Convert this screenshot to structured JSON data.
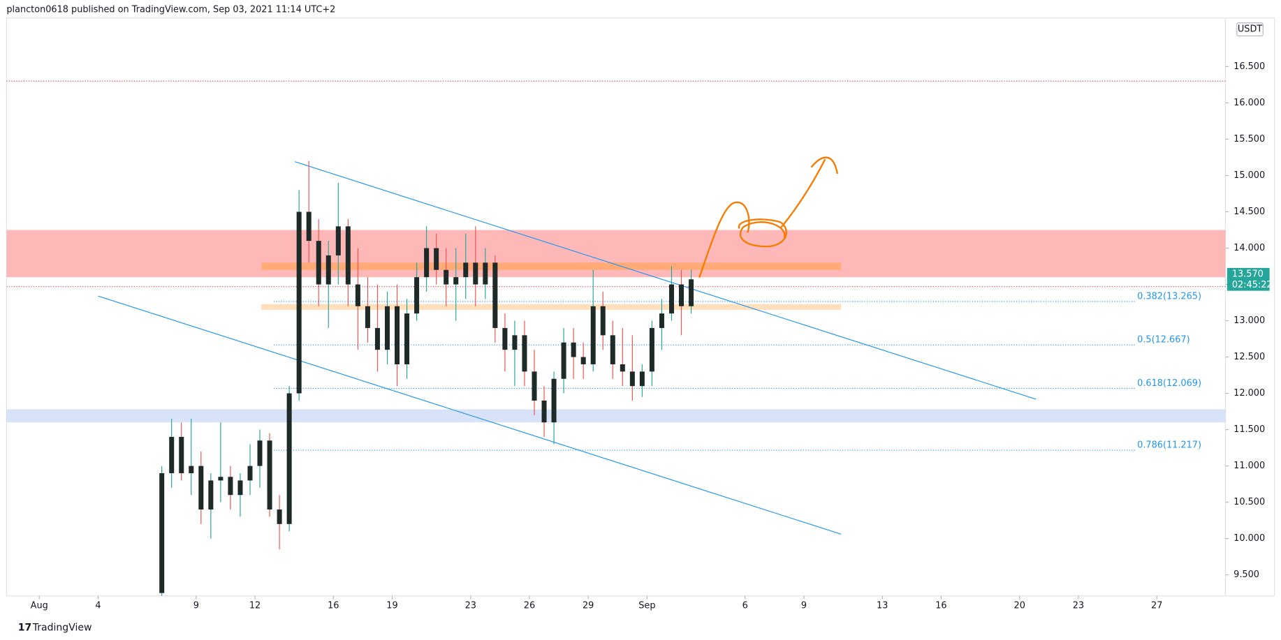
{
  "header": "plancton0618 published on TradingView.com, Sep 03, 2021 11:14 UTC+2",
  "footer": "TradingView",
  "chart_data": {
    "type": "candlestick",
    "currency": "USDT",
    "x": [
      7.0,
      7.5,
      8.0,
      8.5,
      9.0,
      9.5,
      10.0,
      10.5,
      11.0,
      11.5,
      12.0,
      12.5,
      13.0,
      13.5,
      14.0,
      14.5,
      15.0,
      15.5,
      16.0,
      16.5,
      17.0,
      17.5,
      18.0,
      18.5,
      19.0,
      19.5,
      20.0,
      20.5,
      21.0,
      21.5,
      22.0,
      22.5,
      23.0,
      23.5,
      24.0,
      24.5,
      25.0,
      25.5,
      26.0,
      26.5,
      27.0,
      27.5,
      28.0,
      28.5,
      29.0,
      29.5,
      30.0,
      30.5,
      31.0,
      31.5,
      32.0,
      32.5,
      33.0,
      33.5,
      34.0
    ],
    "open": [
      9.25,
      10.9,
      11.4,
      10.9,
      11.0,
      10.4,
      10.8,
      10.85,
      10.6,
      10.8,
      11.0,
      11.35,
      10.4,
      10.2,
      12.0,
      14.5,
      14.1,
      13.5,
      13.9,
      14.3,
      13.5,
      13.2,
      12.9,
      12.6,
      13.2,
      12.4,
      13.1,
      13.6,
      14.0,
      13.7,
      13.5,
      13.6,
      13.8,
      13.5,
      13.8,
      12.9,
      12.6,
      12.8,
      12.3,
      11.9,
      11.6,
      12.2,
      12.7,
      12.5,
      12.4,
      13.2,
      12.8,
      12.4,
      12.3,
      12.1,
      12.3,
      12.9,
      13.1,
      13.5,
      13.2
    ],
    "high": [
      11.0,
      11.65,
      11.6,
      11.65,
      11.2,
      10.9,
      11.6,
      11.0,
      10.9,
      11.3,
      11.5,
      11.45,
      10.6,
      12.1,
      14.8,
      15.2,
      14.4,
      14.1,
      14.9,
      14.4,
      14.0,
      13.6,
      13.5,
      13.4,
      13.5,
      13.3,
      13.8,
      14.3,
      14.2,
      14.0,
      14.0,
      14.2,
      14.3,
      14.0,
      13.9,
      13.1,
      13.0,
      13.0,
      12.6,
      12.1,
      12.3,
      12.9,
      12.9,
      12.7,
      13.7,
      13.4,
      13.0,
      12.9,
      12.8,
      12.4,
      13.0,
      13.3,
      13.75,
      13.7,
      13.7
    ],
    "low": [
      9.2,
      10.7,
      10.8,
      10.6,
      10.2,
      10.0,
      10.5,
      10.4,
      10.3,
      10.6,
      10.7,
      10.3,
      9.85,
      10.1,
      11.9,
      13.8,
      13.2,
      12.9,
      13.5,
      13.2,
      12.6,
      12.7,
      12.3,
      12.4,
      12.1,
      12.2,
      13.0,
      13.4,
      13.5,
      13.2,
      13.0,
      13.3,
      13.2,
      13.3,
      12.7,
      12.3,
      12.1,
      12.1,
      11.7,
      11.4,
      11.3,
      12.0,
      12.2,
      12.2,
      12.3,
      12.6,
      12.2,
      12.1,
      11.9,
      11.95,
      12.1,
      12.6,
      13.0,
      12.8,
      13.1
    ],
    "close": [
      10.9,
      11.4,
      10.9,
      11.0,
      10.4,
      10.8,
      10.85,
      10.6,
      10.8,
      11.0,
      11.35,
      10.4,
      10.2,
      12.0,
      14.5,
      14.1,
      13.5,
      13.9,
      14.3,
      13.5,
      13.2,
      12.9,
      12.6,
      13.2,
      12.4,
      13.1,
      13.6,
      14.0,
      13.7,
      13.5,
      13.6,
      13.8,
      13.5,
      13.8,
      12.9,
      12.6,
      12.8,
      12.3,
      11.9,
      11.6,
      12.2,
      12.7,
      12.5,
      12.4,
      13.2,
      12.8,
      12.4,
      12.3,
      12.1,
      12.3,
      12.9,
      13.1,
      13.5,
      13.2,
      13.57
    ],
    "up_color": "#26a69a",
    "down_color": "#ef5350",
    "body_color": "#1e2a28",
    "xlim": [
      -0.67,
      61.5
    ],
    "xticks": [
      {
        "value": 1,
        "label": "Aug"
      },
      4,
      9,
      12,
      16,
      19,
      23,
      26,
      29,
      {
        "value": 32,
        "label": "Sep"
      },
      {
        "value": 37,
        "label": "6"
      },
      {
        "value": 40,
        "label": "9"
      },
      {
        "value": 44,
        "label": "13"
      },
      {
        "value": 47,
        "label": "16"
      },
      {
        "value": 51,
        "label": "20"
      },
      {
        "value": 54,
        "label": "23"
      },
      {
        "value": 58,
        "label": "27"
      }
    ],
    "ylim": [
      9.21,
      17.17
    ],
    "yticks": [
      {
        "value": 9.5,
        "label": "9.500"
      },
      {
        "value": 10,
        "label": "10.000"
      },
      {
        "value": 10.5,
        "label": "10.500"
      },
      {
        "value": 11,
        "label": "11.000"
      },
      {
        "value": 11.5,
        "label": "11.500"
      },
      {
        "value": 12,
        "label": "12.000"
      },
      {
        "value": 12.5,
        "label": "12.500"
      },
      {
        "value": 13,
        "label": "13.000"
      },
      {
        "value": 13.5,
        "label": "13.500"
      },
      {
        "value": 14,
        "label": "14.000"
      },
      {
        "value": 14.5,
        "label": "14.500"
      },
      {
        "value": 15,
        "label": "15.000"
      },
      {
        "value": 15.5,
        "label": "15.500"
      },
      {
        "value": 16,
        "label": "16.000"
      },
      {
        "value": 16.5,
        "label": "16.500"
      }
    ],
    "last_price": {
      "value": 13.57,
      "label": "13.570"
    },
    "countdown": "02:45:22",
    "zones": [
      {
        "from": 13.6,
        "to": 14.25,
        "color": "#ff9a9a"
      },
      {
        "from": 11.6,
        "to": 11.78,
        "color": "#c7d6f5"
      }
    ],
    "bands": [
      {
        "from": 13.7,
        "to": 13.8,
        "x": [
          12.33,
          41.9
        ],
        "color": "#ffa76b"
      },
      {
        "from": 13.15,
        "to": 13.23,
        "x": [
          12.33,
          41.9
        ],
        "color": "#ffd9b0"
      }
    ],
    "hlines": [
      16.3,
      13.47
    ],
    "fib_levels": [
      {
        "value": 13.265,
        "label": "0.382(13.265)"
      },
      {
        "value": 12.667,
        "label": "0.5(12.667)"
      },
      {
        "value": 12.069,
        "label": "0.618(12.069)"
      },
      {
        "value": 11.217,
        "label": "0.786(11.217)"
      }
    ],
    "trendlines": [
      {
        "x": [
          14.04,
          51.83
        ],
        "y": [
          15.19,
          11.92
        ]
      },
      {
        "x": [
          4.0,
          41.9
        ],
        "y": [
          13.34,
          10.06
        ]
      }
    ]
  }
}
